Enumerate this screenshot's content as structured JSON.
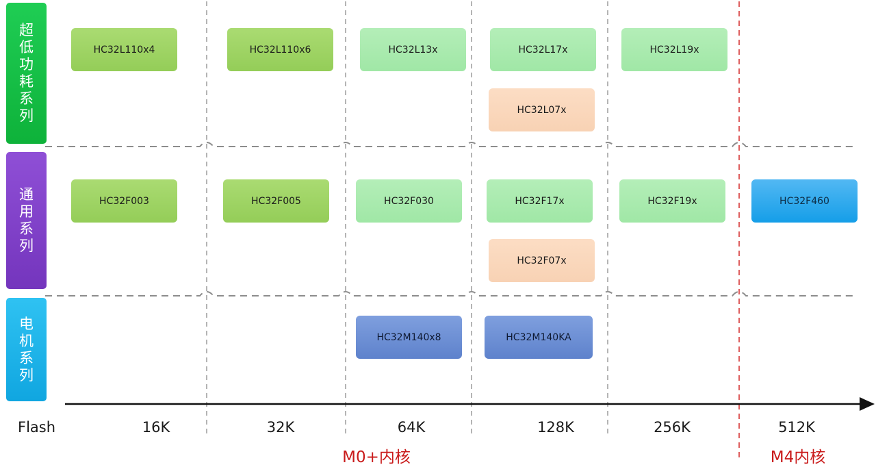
{
  "series_labels": {
    "low_power": "超低功耗系列",
    "general": "通用系列",
    "motor": "电机系列"
  },
  "chips": {
    "low_power": {
      "l110x4": "HC32L110x4",
      "l110x6": "HC32L110x6",
      "l13x": "HC32L13x",
      "l17x": "HC32L17x",
      "l07x": "HC32L07x",
      "l19x": "HC32L19x"
    },
    "general": {
      "f003": "HC32F003",
      "f005": "HC32F005",
      "f030": "HC32F030",
      "f17x": "HC32F17x",
      "f07x": "HC32F07x",
      "f19x": "HC32F19x",
      "f460": "HC32F460"
    },
    "motor": {
      "m140x8": "HC32M140x8",
      "m140ka": "HC32M140KA"
    }
  },
  "axis": {
    "label": "Flash",
    "ticks": [
      "16K",
      "32K",
      "64K",
      "128K",
      "256K",
      "512K"
    ]
  },
  "cores": {
    "m0": "M0+内核",
    "m4": "M4内核"
  },
  "colors": {
    "low_power_label": "#15c046",
    "general_label": "#8142c9",
    "motor_label": "#1fb3e9",
    "m0_chip": "#9fd464",
    "m0plus_chip": "#a8eaae",
    "l07_f07_chip": "#fad7bc",
    "m4_chip": "#27aaee",
    "motor_chip": "#6a8dd3",
    "core_text": "#c91a1a",
    "m4_divider": "#d42a2a"
  }
}
